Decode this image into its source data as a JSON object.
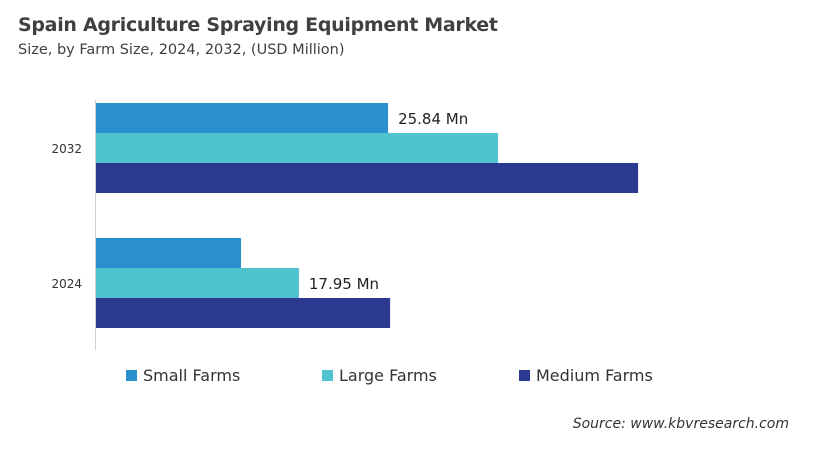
{
  "chart_data": {
    "type": "bar",
    "orientation": "horizontal",
    "title": "Spain Agriculture Spraying Equipment Market",
    "subtitle": "Size, by Farm Size, 2024, 2032, (USD Million)",
    "categories": [
      "2032",
      "2024"
    ],
    "series": [
      {
        "name": "Small Farms",
        "color": "#2a8fcd",
        "values": [
          25.84,
          12.83
        ]
      },
      {
        "name": "Large Farms",
        "color": "#4fc3cf",
        "values": [
          35.57,
          17.95
        ]
      },
      {
        "name": "Medium Farms",
        "color": "#2b3990",
        "values": [
          47.96,
          26.02
        ]
      }
    ],
    "data_labels": [
      {
        "category": "2032",
        "series": "Small Farms",
        "text": "25.84 Mn"
      },
      {
        "category": "2024",
        "series": "Large Farms",
        "text": "17.95 Mn"
      }
    ],
    "xlim": [
      0,
      61.4
    ],
    "grid": false,
    "legend_position": "bottom",
    "source": "Source: www.kbvresearch.com"
  }
}
